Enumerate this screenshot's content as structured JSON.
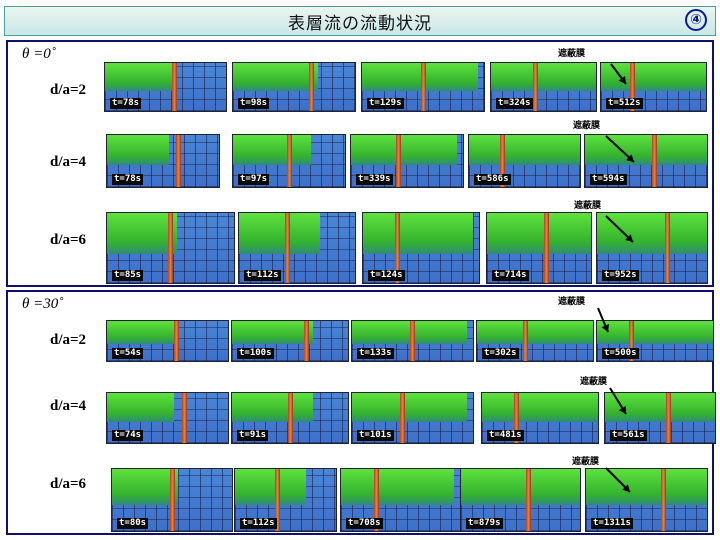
{
  "title": "表層流の流動状況",
  "slide_number": "④",
  "barrier_label": "遮蔽膜",
  "panels": [
    {
      "theta": "θ =0˚",
      "rows": [
        {
          "label": "d/a=2",
          "times": [
            "t=78s",
            "t=98s",
            "t=129s",
            "t=324s",
            "t=512s"
          ]
        },
        {
          "label": "d/a=4",
          "times": [
            "t=78s",
            "t=97s",
            "t=339s",
            "t=586s",
            "t=594s"
          ]
        },
        {
          "label": "d/a=6",
          "times": [
            "t=85s",
            "t=112s",
            "t=124s",
            "t=714s",
            "t=952s"
          ]
        }
      ]
    },
    {
      "theta": "θ =30˚",
      "rows": [
        {
          "label": "d/a=2",
          "times": [
            "t=54s",
            "t=100s",
            "t=133s",
            "t=302s",
            "t=500s"
          ]
        },
        {
          "label": "d/a=4",
          "times": [
            "t=74s",
            "t=91s",
            "t=101s",
            "t=481s",
            "t=561s"
          ]
        },
        {
          "label": "d/a=6",
          "times": [
            "t=80s",
            "t=112s",
            "t=708s",
            "t=879s",
            "t=1311s"
          ]
        }
      ]
    }
  ]
}
